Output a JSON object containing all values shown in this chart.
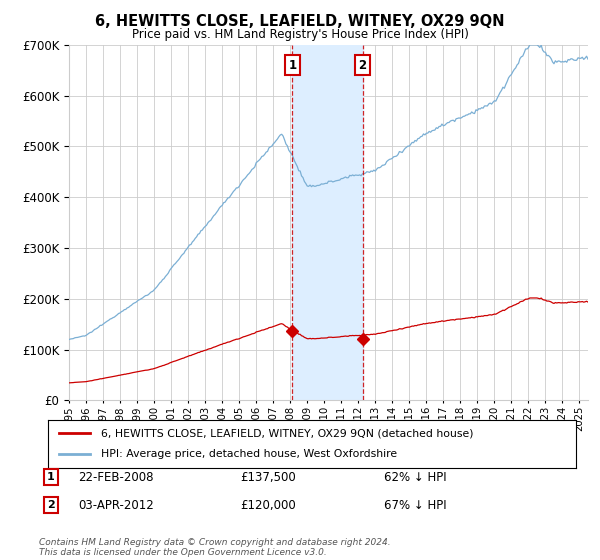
{
  "title": "6, HEWITTS CLOSE, LEAFIELD, WITNEY, OX29 9QN",
  "subtitle": "Price paid vs. HM Land Registry's House Price Index (HPI)",
  "ylim": [
    0,
    700000
  ],
  "yticks": [
    0,
    100000,
    200000,
    300000,
    400000,
    500000,
    600000,
    700000
  ],
  "xlim_start": 1995.0,
  "xlim_end": 2025.5,
  "sale1_year": 2008.13,
  "sale1_price": 137500,
  "sale2_year": 2012.25,
  "sale2_price": 120000,
  "sale1_label": "1",
  "sale2_label": "2",
  "sale1_date": "22-FEB-2008",
  "sale1_amount": "£137,500",
  "sale1_hpi": "62% ↓ HPI",
  "sale2_date": "03-APR-2012",
  "sale2_amount": "£120,000",
  "sale2_hpi": "67% ↓ HPI",
  "legend1": "6, HEWITTS CLOSE, LEAFIELD, WITNEY, OX29 9QN (detached house)",
  "legend2": "HPI: Average price, detached house, West Oxfordshire",
  "footer": "Contains HM Land Registry data © Crown copyright and database right 2024.\nThis data is licensed under the Open Government Licence v3.0.",
  "property_color": "#cc0000",
  "hpi_color": "#7bafd4",
  "shade_color": "#ddeeff",
  "marker_box_color": "#cc0000",
  "background_color": "#ffffff",
  "grid_color": "#cccccc"
}
